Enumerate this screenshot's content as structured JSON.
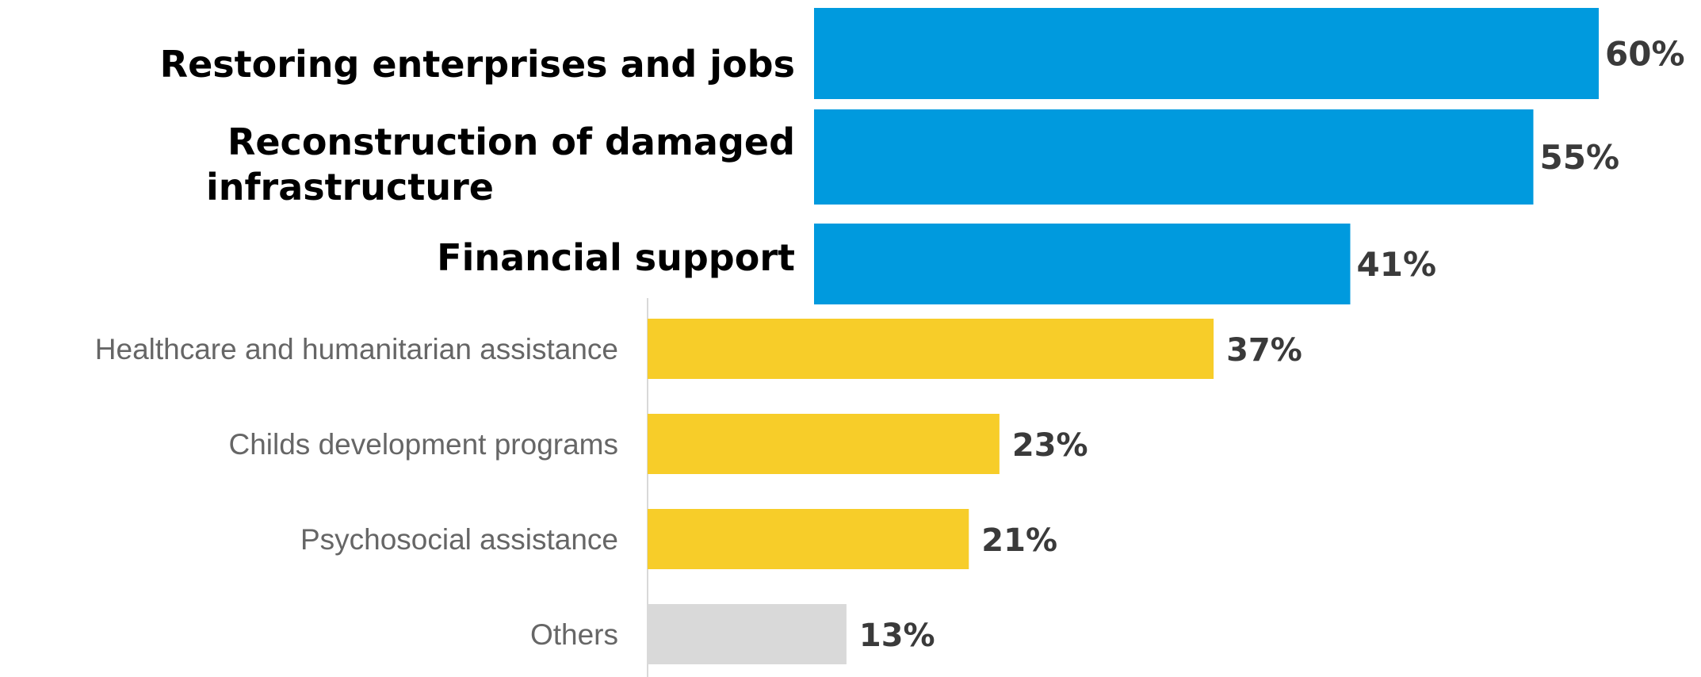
{
  "chart_data": {
    "type": "bar",
    "orientation": "horizontal",
    "categories": [
      "Restoring enterprises and jobs",
      "Reconstruction of damaged infrastructure",
      "Financial support",
      "Healthcare and humanitarian assistance",
      "Childs development programs",
      "Psychosocial assistance",
      "Others"
    ],
    "values": [
      60,
      55,
      41,
      37,
      23,
      21,
      13
    ],
    "value_labels": [
      "60%",
      "55%",
      "41%",
      "37%",
      "23%",
      "21%",
      "13%"
    ],
    "highlighted": [
      true,
      true,
      true,
      false,
      false,
      false,
      false
    ],
    "colors": [
      "#009ADE",
      "#009ADE",
      "#009ADE",
      "#F7CD29",
      "#F7CD29",
      "#F7CD29",
      "#D9D9D9"
    ],
    "unit": "%",
    "xlim": [
      0,
      60
    ],
    "grid": false,
    "legend": "none"
  }
}
